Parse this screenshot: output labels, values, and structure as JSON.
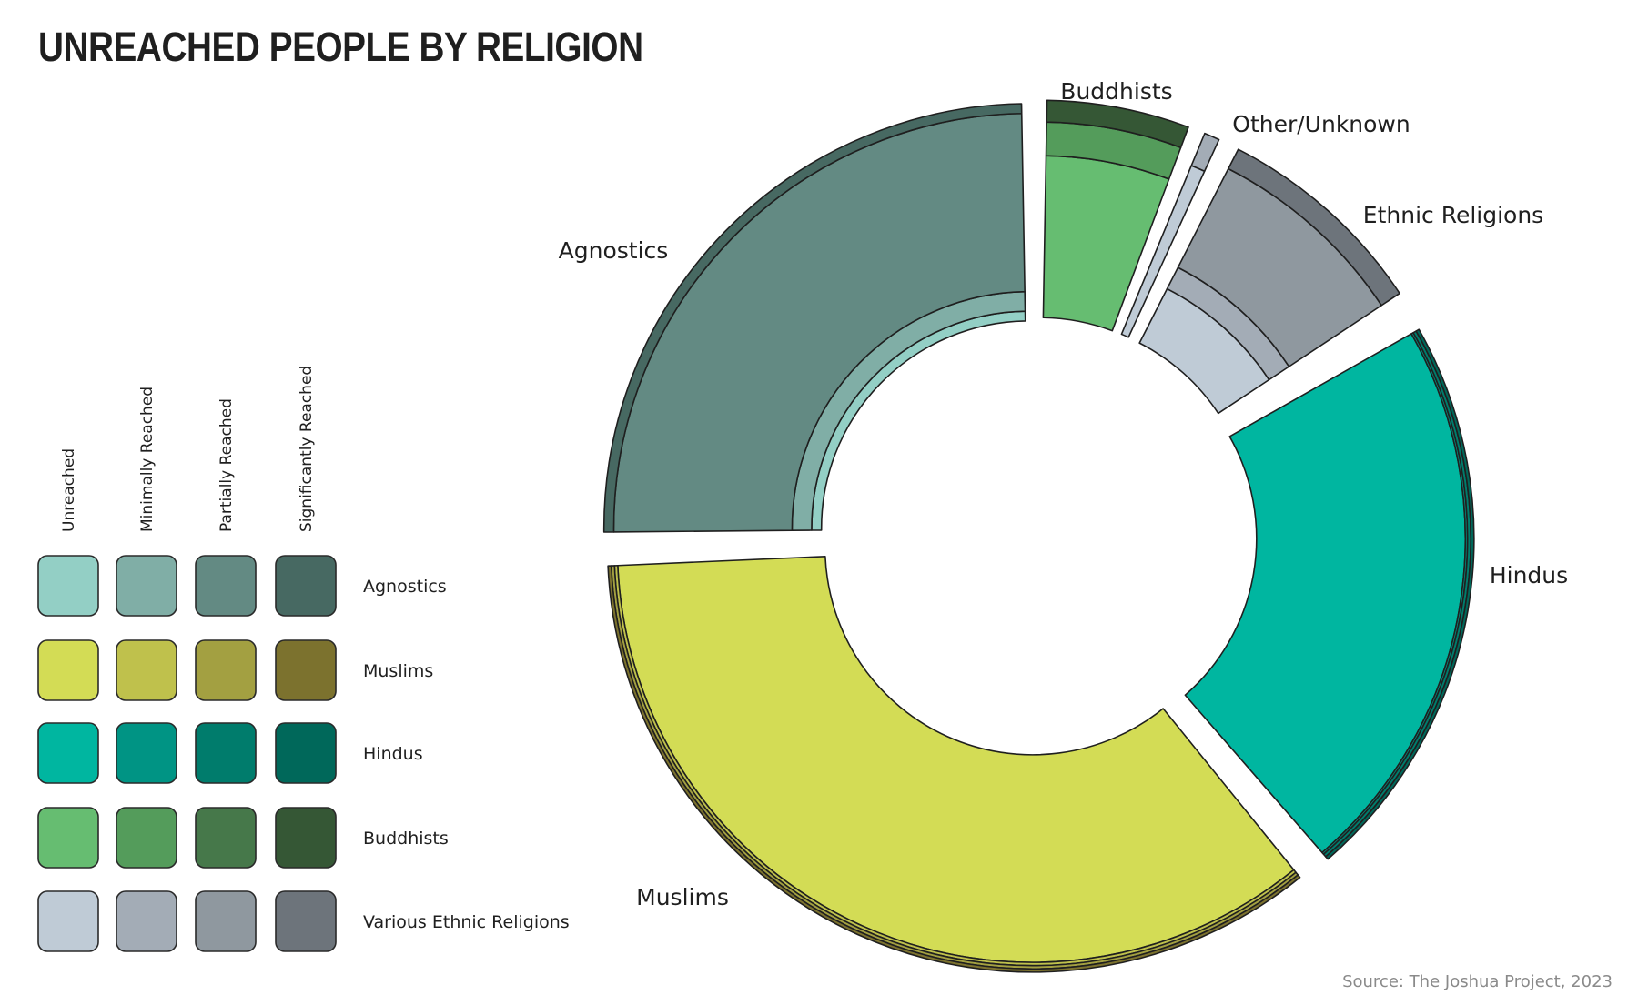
{
  "title": "UNREACHED PEOPLE BY RELIGION",
  "source": "Source: The Joshua Project, 2023",
  "chart_data": {
    "type": "pie",
    "subtype": "nested donut",
    "title": "UNREACHED PEOPLE BY RELIGION",
    "reach_levels": [
      "Unreached",
      "Minimally Reached",
      "Partially Reached",
      "Significantly Reached"
    ],
    "legend_rows": [
      {
        "name": "Agnostics",
        "colors": [
          "#93cfc5",
          "#80aea6",
          "#638a83",
          "#476962"
        ]
      },
      {
        "name": "Muslims",
        "colors": [
          "#d3dc55",
          "#bfc14c",
          "#a3a041",
          "#7c722e"
        ]
      },
      {
        "name": "Hindus",
        "colors": [
          "#00b6a0",
          "#009484",
          "#007c6c",
          "#00685a"
        ]
      },
      {
        "name": "Buddhists",
        "colors": [
          "#66bd71",
          "#549c5b",
          "#46784a",
          "#355735"
        ]
      },
      {
        "name": "Various Ethnic Religions",
        "colors": [
          "#bfcbd6",
          "#a3acb6",
          "#8f989f",
          "#6d747b"
        ]
      }
    ],
    "segments": [
      {
        "name": "Hindus",
        "label": "Hindus",
        "start_deg": 60.5,
        "end_deg": 139,
        "colors": [
          "#00b6a0",
          "#009484",
          "#007c6c",
          "#00685a"
        ],
        "reach_shares": [
          0.96,
          0.01,
          0.015,
          0.015
        ]
      },
      {
        "name": "Muslims",
        "label": "Muslims",
        "start_deg": 141,
        "end_deg": 267.5,
        "colors": [
          "#d3dc55",
          "#bfc14c",
          "#a3a041",
          "#7c722e"
        ],
        "reach_shares": [
          0.955,
          0.015,
          0.015,
          0.015
        ]
      },
      {
        "name": "Agnostics",
        "label": "Agnostics",
        "start_deg": 269.5,
        "end_deg": 359,
        "colors": [
          "#93cfc5",
          "#80aea6",
          "#638a83",
          "#476962"
        ],
        "reach_shares": [
          0.045,
          0.09,
          0.82,
          0.045
        ]
      },
      {
        "name": "Buddhists",
        "label": "Buddhists",
        "start_deg": 1,
        "end_deg": 20.5,
        "colors": [
          "#66bd71",
          "#549c5b",
          "#46784a",
          "#355735"
        ],
        "reach_shares": [
          0.745,
          0.155,
          0.0,
          0.1
        ]
      },
      {
        "name": "Other/Unknown",
        "label": "Other/Unknown",
        "start_deg": 22.5,
        "end_deg": 24.6,
        "colors": [
          "#bfcbd6",
          "#a3acb6",
          "#8f989f",
          "#6d747b"
        ],
        "reach_shares": [
          0.84,
          0.16,
          0.0,
          0.0
        ]
      },
      {
        "name": "Ethnic Religions",
        "label": "Ethnic Religions",
        "start_deg": 27,
        "end_deg": 56.5,
        "colors": [
          "#bfcbd6",
          "#a3acb6",
          "#8f989f",
          "#6d747b"
        ],
        "reach_shares": [
          0.28,
          0.11,
          0.51,
          0.1
        ]
      }
    ]
  }
}
